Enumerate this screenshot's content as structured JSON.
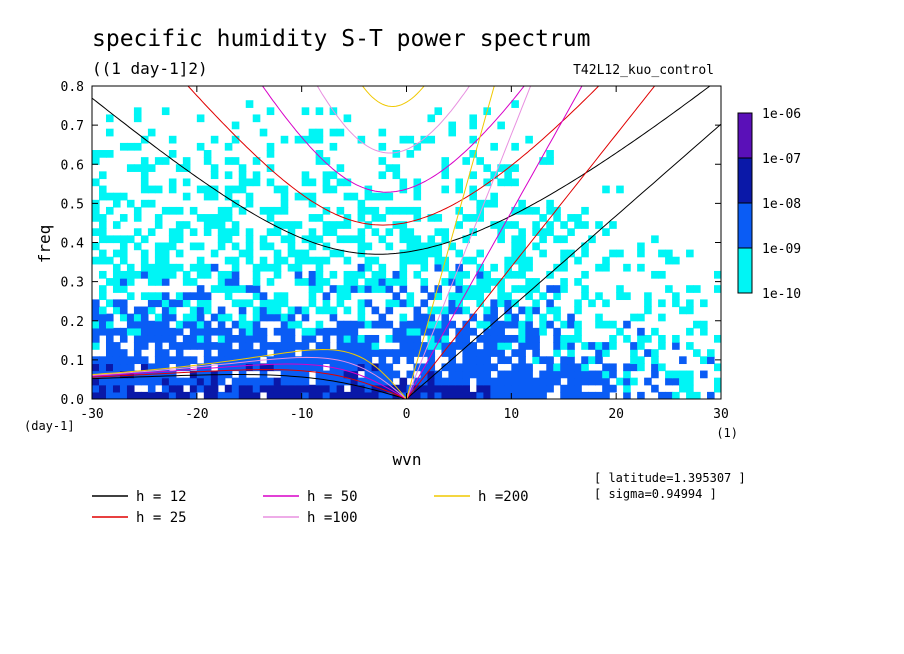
{
  "chart_data": {
    "type": "heatmap",
    "title": "specific humidity S-T power spectrum",
    "subtitle": "((1 day-1]2)",
    "run_label": "T42L12_kuo_control",
    "xlabel": "wvn",
    "ylabel": "freq",
    "y_unit": "(day-1]",
    "x_unit": "(1)",
    "xlim": [
      -30,
      30
    ],
    "ylim": [
      0,
      0.8
    ],
    "x_ticks": [
      -30,
      -20,
      -10,
      0,
      10,
      20,
      30
    ],
    "x_tick_labels": [
      "-30",
      "-20",
      "-10",
      "0",
      "10",
      "20",
      "30"
    ],
    "y_ticks": [
      0,
      0.1,
      0.2,
      0.3,
      0.4,
      0.5,
      0.6,
      0.7,
      0.8
    ],
    "y_tick_labels": [
      "0.0",
      "0.1",
      "0.2",
      "0.3",
      "0.4",
      "0.5",
      "0.6",
      "0.7",
      "0.8"
    ],
    "colorbar": {
      "levels": [
        "1e-06",
        "1e-07",
        "1e-08",
        "1e-09",
        "1e-10"
      ],
      "colors": [
        "#5a10b8",
        "#0a18a8",
        "#0a5cf5",
        "#00f5f5"
      ]
    },
    "power_bands_by_freq": [
      {
        "freq_range": [
          0.0,
          0.05
        ],
        "dominant_level": "1e-07"
      },
      {
        "freq_range": [
          0.05,
          0.25
        ],
        "dominant_level": "1e-08"
      },
      {
        "freq_range": [
          0.25,
          0.55
        ],
        "dominant_level": "1e-09"
      },
      {
        "freq_range": [
          0.55,
          0.8
        ],
        "dominant_level": "1e-10"
      }
    ],
    "series": [
      {
        "name": "h = 12",
        "label": "h = 12",
        "color": "#000000",
        "equivalent_depth": 12
      },
      {
        "name": "h = 25",
        "label": "h = 25",
        "color": "#e00000",
        "equivalent_depth": 25
      },
      {
        "name": "h = 50",
        "label": "h = 50",
        "color": "#d800c8",
        "equivalent_depth": 50
      },
      {
        "name": "h =100",
        "label": "h =100",
        "color": "#e890e0",
        "equivalent_depth": 100
      },
      {
        "name": "h =200",
        "label": "h =200",
        "color": "#f0c800",
        "equivalent_depth": 200
      }
    ],
    "info": [
      "[ latitude=1.395307 ]",
      "[ sigma=0.94994 ]"
    ],
    "grid": false,
    "legend_position": "bottom-left"
  }
}
